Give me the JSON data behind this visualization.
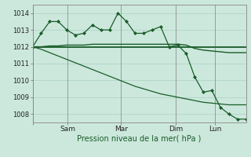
{
  "xlabel": "Pression niveau de la mer( hPa )",
  "bg_color": "#cce8dc",
  "grid_color": "#aad0c0",
  "line_color": "#1a5c2a",
  "ylim": [
    1007.5,
    1014.5
  ],
  "yticks": [
    1008,
    1009,
    1010,
    1011,
    1012,
    1013,
    1014
  ],
  "day_positions": [
    0.0,
    0.165,
    0.415,
    0.67,
    0.855
  ],
  "day_labels": [
    "",
    "Sam",
    "Mar",
    "Dim",
    "Lun"
  ],
  "n_points": 26,
  "line1": [
    1012.0,
    1012.8,
    1013.5,
    1013.5,
    1013.0,
    1012.7,
    1012.8,
    1013.3,
    1013.0,
    1013.0,
    1014.0,
    1013.5,
    1012.8,
    1012.8,
    1013.0,
    1013.2,
    1012.0,
    1012.1,
    1011.6,
    1010.2,
    1009.3,
    1009.4,
    1008.4,
    1008.0,
    1007.7,
    1007.7
  ],
  "line2": [
    1012.0,
    1012.0,
    1012.0,
    1012.0,
    1012.0,
    1012.0,
    1012.0,
    1012.0,
    1012.0,
    1012.0,
    1012.0,
    1012.0,
    1012.0,
    1012.0,
    1012.0,
    1012.0,
    1012.0,
    1012.0,
    1012.0,
    1012.0,
    1012.0,
    1012.0,
    1012.0,
    1012.0,
    1012.0,
    1012.0
  ],
  "line3": [
    1012.0,
    1012.0,
    1012.05,
    1012.05,
    1012.1,
    1012.1,
    1012.1,
    1012.15,
    1012.15,
    1012.15,
    1012.15,
    1012.15,
    1012.15,
    1012.15,
    1012.15,
    1012.15,
    1012.15,
    1012.15,
    1012.1,
    1011.9,
    1011.8,
    1011.75,
    1011.7,
    1011.65,
    1011.65,
    1011.65
  ],
  "line4": [
    1012.0,
    1011.85,
    1011.65,
    1011.45,
    1011.25,
    1011.05,
    1010.85,
    1010.65,
    1010.45,
    1010.25,
    1010.05,
    1009.85,
    1009.65,
    1009.5,
    1009.35,
    1009.2,
    1009.1,
    1009.0,
    1008.9,
    1008.8,
    1008.7,
    1008.65,
    1008.6,
    1008.55,
    1008.55,
    1008.55
  ]
}
